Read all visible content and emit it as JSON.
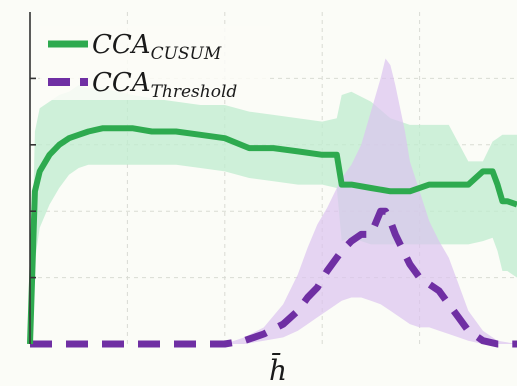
{
  "chart_data": {
    "type": "line",
    "title": "",
    "xlabel": "h̄",
    "ylabel": "",
    "grid": true,
    "legend_position": "top-left",
    "xlim": [
      0,
      100
    ],
    "ylim": [
      0,
      100
    ],
    "series": [
      {
        "name": "CCA",
        "name_subscript": "CUSUM",
        "color": "#2eaa4f",
        "band_color": "#bfeccf",
        "style": "solid",
        "x": [
          0,
          1,
          2,
          4,
          6,
          8,
          10,
          12,
          15,
          18,
          21,
          25,
          30,
          35,
          40,
          45,
          50,
          55,
          60,
          63,
          64,
          66,
          70,
          74,
          78,
          82,
          86,
          90,
          93,
          95,
          96,
          97,
          98,
          100
        ],
        "y": [
          0,
          46,
          52,
          57,
          60,
          62,
          63,
          64,
          65,
          65,
          65,
          64,
          64,
          63,
          62,
          59,
          59,
          58,
          57,
          57,
          48,
          48,
          47,
          46,
          46,
          48,
          48,
          48,
          52,
          52,
          48,
          43,
          43,
          42
        ],
        "lower": [
          0,
          25,
          35,
          42,
          47,
          51,
          53,
          54,
          54,
          54,
          54,
          54,
          54,
          53,
          52,
          50,
          49,
          48,
          48,
          47,
          31,
          32,
          30,
          30,
          30,
          30,
          30,
          30,
          31,
          32,
          28,
          22,
          22,
          20
        ],
        "upper": [
          0,
          64,
          71,
          73,
          75,
          76,
          78,
          77,
          77,
          76,
          75,
          74,
          73,
          72,
          72,
          70,
          69,
          68,
          67,
          68,
          75,
          76,
          73,
          68,
          66,
          66,
          66,
          55,
          55,
          61,
          62,
          63,
          63,
          63
        ]
      },
      {
        "name": "CCA",
        "name_subscript": "Threshold",
        "color": "#6f2fa3",
        "band_color": "#dcc3ef",
        "style": "dashed",
        "x": [
          0,
          5,
          10,
          15,
          20,
          25,
          30,
          35,
          40,
          44,
          48,
          52,
          55,
          57,
          59,
          61,
          64,
          66,
          68,
          70,
          72,
          73,
          74,
          75,
          77,
          78,
          80,
          82,
          84,
          86,
          88,
          90,
          93,
          96,
          100
        ],
        "y": [
          0,
          0,
          0,
          0,
          0,
          0,
          0,
          0,
          0,
          1,
          3,
          6,
          10,
          14,
          17,
          22,
          28,
          31,
          33,
          33,
          40,
          40,
          37,
          33,
          27,
          24,
          20,
          18,
          16,
          12,
          8,
          4,
          1,
          0,
          0
        ],
        "lower": [
          0,
          0,
          0,
          0,
          0,
          0,
          0,
          0,
          0,
          0,
          1,
          2,
          4,
          6,
          8,
          10,
          13,
          14,
          14,
          13,
          12,
          11,
          10,
          9,
          7,
          6,
          5,
          5,
          4,
          3,
          2,
          1,
          0,
          0,
          0
        ],
        "upper": [
          0,
          0,
          0,
          0,
          0,
          0,
          0,
          0,
          0,
          2,
          5,
          12,
          21,
          29,
          36,
          41,
          50,
          54,
          60,
          70,
          80,
          86,
          84,
          78,
          64,
          55,
          46,
          37,
          31,
          26,
          18,
          10,
          4,
          1,
          0
        ]
      }
    ]
  }
}
